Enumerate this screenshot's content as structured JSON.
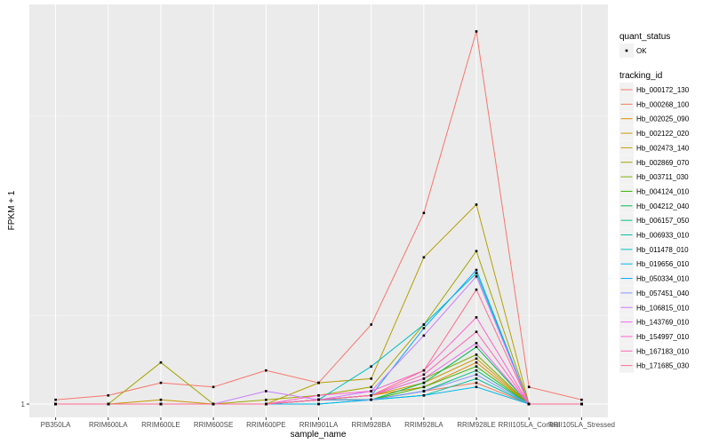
{
  "chart_data": {
    "type": "line",
    "xlabel": "sample_name",
    "ylabel": "FPKM + 1",
    "y_tick_labels": [
      "1"
    ],
    "y_scale": "log10",
    "ylim": [
      0.97,
      2.5
    ],
    "categories": [
      "PB350LA",
      "RRIM600LA",
      "RRIM600LE",
      "RRIM600SE",
      "RRIM600PE",
      "RRIM901LA",
      "RRIM928BA",
      "RRIM928LA",
      "RRIM928LE",
      "RRII105LA_Control",
      "RRII105LA_Stressed"
    ],
    "legend_status_title": "quant_status",
    "legend_status_items": [
      "OK"
    ],
    "legend_title": "tracking_id",
    "series": [
      {
        "name": "Hb_000172_130",
        "color": "#F8766D",
        "values": [
          1.01,
          1.02,
          1.05,
          1.04,
          1.08,
          1.05,
          1.2,
          1.55,
          2.35,
          1.04,
          1.01
        ]
      },
      {
        "name": "Hb_000268_100",
        "color": "#F37B59",
        "values": [
          1.0,
          1.0,
          1.0,
          1.0,
          1.0,
          1.01,
          1.01,
          1.03,
          1.05,
          1.0,
          1.0
        ]
      },
      {
        "name": "Hb_002025_090",
        "color": "#DE8C00",
        "values": [
          1.0,
          1.0,
          1.0,
          1.0,
          1.0,
          1.01,
          1.02,
          1.04,
          1.1,
          1.0,
          1.0
        ]
      },
      {
        "name": "Hb_002122_020",
        "color": "#C99800",
        "values": [
          1.0,
          1.0,
          1.01,
          1.0,
          1.0,
          1.01,
          1.02,
          1.05,
          1.11,
          1.0,
          1.0
        ]
      },
      {
        "name": "Hb_002473_140",
        "color": "#B79F00",
        "values": [
          1.0,
          1.0,
          1.0,
          1.0,
          1.0,
          1.05,
          1.06,
          1.4,
          1.58,
          1.0,
          1.0
        ]
      },
      {
        "name": "Hb_002869_070",
        "color": "#A3A500",
        "values": [
          1.0,
          1.0,
          1.1,
          1.0,
          1.01,
          1.02,
          1.04,
          1.2,
          1.42,
          1.0,
          1.0
        ]
      },
      {
        "name": "Hb_003711_030",
        "color": "#7CAE00",
        "values": [
          1.0,
          1.0,
          1.0,
          1.0,
          1.0,
          1.01,
          1.02,
          1.06,
          1.12,
          1.0,
          1.0
        ]
      },
      {
        "name": "Hb_004124_010",
        "color": "#39B600",
        "values": [
          1.0,
          1.0,
          1.0,
          1.0,
          1.0,
          1.01,
          1.01,
          1.04,
          1.09,
          1.0,
          1.0
        ]
      },
      {
        "name": "Hb_004212_040",
        "color": "#00BB4E",
        "values": [
          1.0,
          1.0,
          1.0,
          1.0,
          1.0,
          1.01,
          1.01,
          1.05,
          1.14,
          1.0,
          1.0
        ]
      },
      {
        "name": "Hb_006157_050",
        "color": "#00BF7D",
        "values": [
          1.0,
          1.0,
          1.0,
          1.0,
          1.0,
          1.01,
          1.01,
          1.03,
          1.08,
          1.0,
          1.0
        ]
      },
      {
        "name": "Hb_006933_010",
        "color": "#00C1A3",
        "values": [
          1.0,
          1.0,
          1.0,
          1.0,
          1.0,
          1.0,
          1.01,
          1.02,
          1.06,
          1.0,
          1.0
        ]
      },
      {
        "name": "Hb_011478_010",
        "color": "#00BFC4",
        "values": [
          1.0,
          1.0,
          1.0,
          1.0,
          1.0,
          1.01,
          1.09,
          1.2,
          1.35,
          1.0,
          1.0
        ]
      },
      {
        "name": "Hb_019656_010",
        "color": "#00B8E7",
        "values": [
          1.0,
          1.0,
          1.0,
          1.0,
          1.0,
          1.0,
          1.01,
          1.02,
          1.04,
          1.0,
          1.0
        ]
      },
      {
        "name": "Hb_050334_010",
        "color": "#00A9FF",
        "values": [
          1.0,
          1.0,
          1.0,
          1.0,
          1.0,
          1.01,
          1.02,
          1.19,
          1.36,
          1.0,
          1.0
        ]
      },
      {
        "name": "Hb_057451_040",
        "color": "#8494FF",
        "values": [
          1.0,
          1.0,
          1.0,
          1.0,
          1.0,
          1.01,
          1.01,
          1.03,
          1.07,
          1.0,
          1.0
        ]
      },
      {
        "name": "Hb_106815_010",
        "color": "#C77CFF",
        "values": [
          1.0,
          1.0,
          1.0,
          1.0,
          1.03,
          1.01,
          1.03,
          1.17,
          1.34,
          1.0,
          1.0
        ]
      },
      {
        "name": "Hb_143769_010",
        "color": "#ED68ED",
        "values": [
          1.0,
          1.0,
          1.0,
          1.0,
          1.0,
          1.01,
          1.02,
          1.06,
          1.15,
          1.0,
          1.0
        ]
      },
      {
        "name": "Hb_154997_010",
        "color": "#FF61CC",
        "values": [
          1.0,
          1.0,
          1.0,
          1.0,
          1.0,
          1.02,
          1.03,
          1.08,
          1.22,
          1.0,
          1.0
        ]
      },
      {
        "name": "Hb_167183_010",
        "color": "#FF63B6",
        "values": [
          1.0,
          1.0,
          1.0,
          1.0,
          1.0,
          1.01,
          1.02,
          1.07,
          1.18,
          1.0,
          1.0
        ]
      },
      {
        "name": "Hb_171685_030",
        "color": "#FF6C91",
        "values": [
          1.0,
          1.0,
          1.0,
          1.0,
          1.0,
          1.01,
          1.02,
          1.08,
          1.3,
          1.0,
          1.0
        ]
      }
    ]
  }
}
